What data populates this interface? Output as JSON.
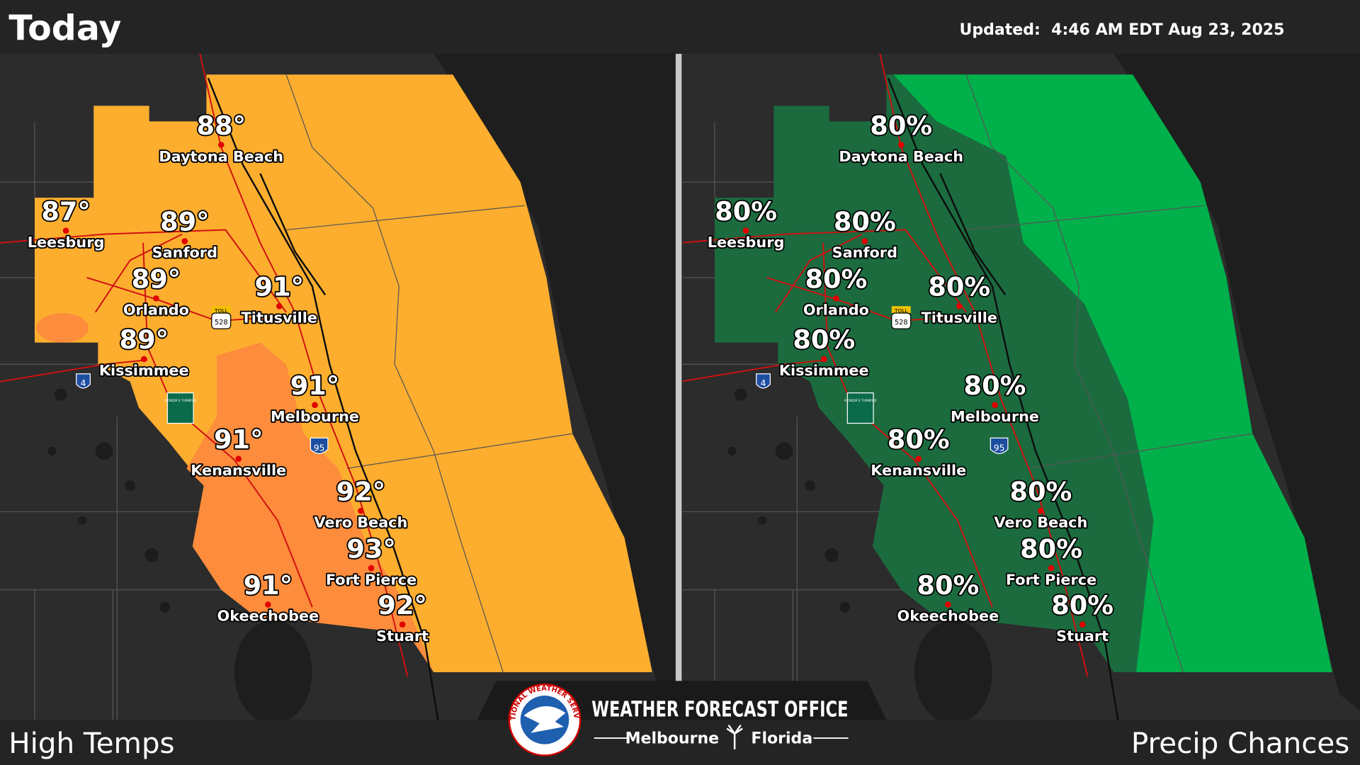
{
  "header": {
    "title": "Today",
    "updated": "Updated:  4:46 AM EDT Aug 23, 2025"
  },
  "panels": [
    {
      "label": "High Temps"
    },
    {
      "label": "Precip Chances"
    }
  ],
  "cities": [
    {
      "name": "Daytona Beach",
      "high": "88°",
      "precip": "80%"
    },
    {
      "name": "Leesburg",
      "high": "87°",
      "precip": "80%"
    },
    {
      "name": "Sanford",
      "high": "89°",
      "precip": "80%"
    },
    {
      "name": "Orlando",
      "high": "89°",
      "precip": "80%"
    },
    {
      "name": "Titusville",
      "high": "91°",
      "precip": "80%"
    },
    {
      "name": "Kissimmee",
      "high": "89°",
      "precip": "80%"
    },
    {
      "name": "Melbourne",
      "high": "91°",
      "precip": "80%"
    },
    {
      "name": "Kenansville",
      "high": "91°",
      "precip": "80%"
    },
    {
      "name": "Vero Beach",
      "high": "92°",
      "precip": "80%"
    },
    {
      "name": "Fort Pierce",
      "high": "93°",
      "precip": "80%"
    },
    {
      "name": "Okeechobee",
      "high": "91°",
      "precip": "80%"
    },
    {
      "name": "Stuart",
      "high": "92°",
      "precip": "80%"
    }
  ],
  "shields": {
    "interstate_4": "4",
    "interstate_95": "95",
    "sr528": "528",
    "toll": "TOLL",
    "turnpike": "FLORIDA'S TURNPIKE"
  },
  "footer": {
    "office": "WEATHER FORECAST OFFICE",
    "city": "Melbourne",
    "state": "Florida",
    "logo": "NATIONAL WEATHER SERVICE"
  }
}
